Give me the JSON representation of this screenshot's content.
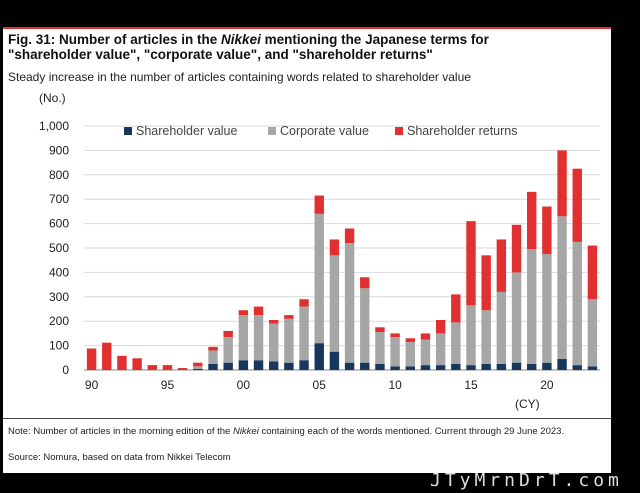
{
  "title_prefix": "Fig. 31: Number of articles in the ",
  "title_italic": "Nikkei",
  "title_rest": " mentioning the Japanese terms for",
  "title_line2": "\"shareholder value\", \"corporate value\", and \"shareholder returns\"",
  "subtitle": "Steady increase in the number of articles containing words related to shareholder value",
  "note_prefix": "Note: Number of articles in the morning edition of the ",
  "note_italic": "Nikkei",
  "note_rest": " containing each of the words mentioned. Current through 29 June 2023.",
  "source": "Source: Nomura, based on data from Nikkei Telecom",
  "watermark_text": "JTyMrnDrT.com",
  "colors": {
    "shareholder_value": "#17375e",
    "corporate_value": "#a6a6a6",
    "shareholder_returns": "#e03030",
    "accent": "#e03030"
  },
  "chart_data": {
    "type": "bar",
    "stacked": true,
    "ylabel": "(No.)",
    "xlabel": "(CY)",
    "ylim": [
      0,
      1000
    ],
    "yticks": [
      "0",
      "100",
      "200",
      "300",
      "400",
      "500",
      "600",
      "700",
      "800",
      "900",
      "1,000"
    ],
    "xticks": [
      "90",
      "95",
      "00",
      "05",
      "10",
      "15",
      "20"
    ],
    "grid": true,
    "legend_position": "top",
    "categories": [
      "1990",
      "1991",
      "1992",
      "1993",
      "1994",
      "1995",
      "1996",
      "1997",
      "1998",
      "1999",
      "2000",
      "2001",
      "2002",
      "2003",
      "2004",
      "2005",
      "2006",
      "2007",
      "2008",
      "2009",
      "2010",
      "2011",
      "2012",
      "2013",
      "2014",
      "2015",
      "2016",
      "2017",
      "2018",
      "2019",
      "2020",
      "2021",
      "2022",
      "2023"
    ],
    "series": [
      {
        "name": "Shareholder value",
        "values": [
          0,
          0,
          0,
          0,
          0,
          0,
          0,
          5,
          25,
          30,
          40,
          40,
          35,
          30,
          40,
          110,
          75,
          30,
          30,
          25,
          15,
          15,
          20,
          20,
          25,
          20,
          25,
          25,
          30,
          25,
          30,
          45,
          20,
          15
        ]
      },
      {
        "name": "Corporate value",
        "values": [
          0,
          0,
          0,
          0,
          0,
          0,
          0,
          10,
          55,
          105,
          185,
          185,
          155,
          180,
          220,
          530,
          395,
          490,
          305,
          130,
          120,
          100,
          105,
          130,
          170,
          245,
          220,
          295,
          370,
          470,
          445,
          585,
          505,
          275
        ]
      },
      {
        "name": "Shareholder returns",
        "values": [
          88,
          112,
          58,
          48,
          20,
          20,
          8,
          15,
          15,
          25,
          20,
          35,
          15,
          15,
          30,
          75,
          65,
          60,
          45,
          20,
          15,
          15,
          25,
          55,
          115,
          345,
          225,
          215,
          195,
          235,
          195,
          270,
          300,
          220
        ]
      }
    ]
  }
}
